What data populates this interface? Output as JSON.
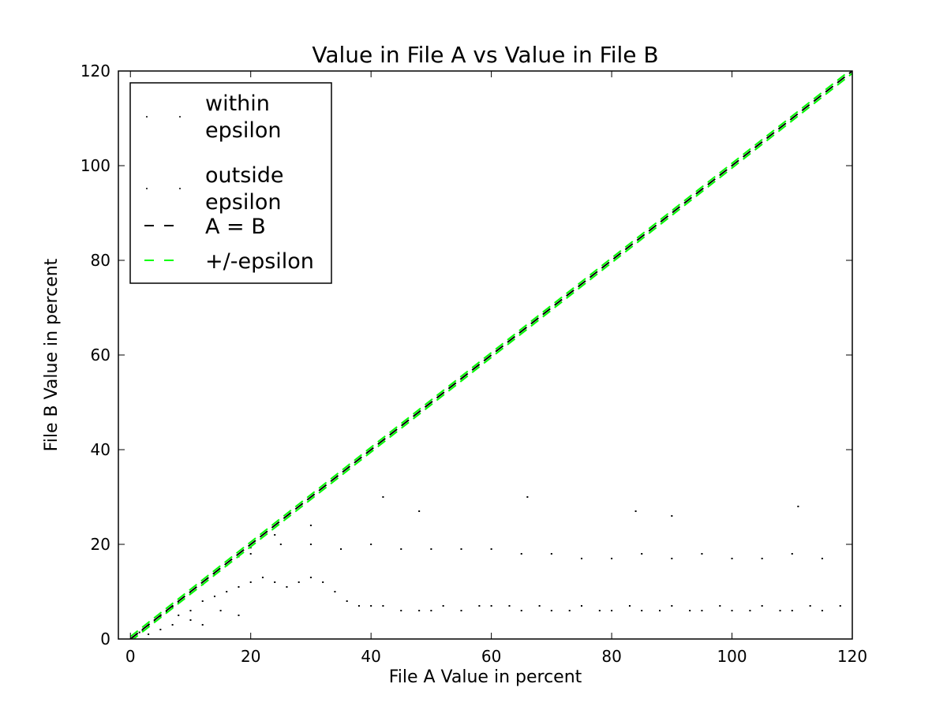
{
  "chart_data": {
    "type": "scatter",
    "title": "Value in File A vs Value in File B",
    "xlabel": "File A Value in percent",
    "ylabel": "File B Value in percent",
    "xlim": [
      -2,
      120
    ],
    "ylim": [
      0,
      120
    ],
    "xticks": [
      0,
      20,
      40,
      60,
      80,
      100,
      120
    ],
    "yticks": [
      0,
      20,
      40,
      60,
      80,
      100,
      120
    ],
    "tick_labels_x": [
      "0",
      "20",
      "40",
      "60",
      "80",
      "100",
      "120"
    ],
    "tick_labels_y": [
      "0",
      "20",
      "40",
      "60",
      "80",
      "100",
      "120"
    ],
    "grid": false,
    "legend": {
      "placement": "top-left",
      "entries": [
        {
          "label": "within epsilon",
          "lines": [
            "within",
            "epsilon"
          ],
          "marker": "point",
          "color": "#000000"
        },
        {
          "label": "outside epsilon",
          "lines": [
            "outside",
            "epsilon"
          ],
          "marker": "point",
          "color": "#000000"
        },
        {
          "label": "A = B",
          "lines": [
            "A = B"
          ],
          "marker": "dashed-line",
          "color": "#000000"
        },
        {
          "label": "+/-epsilon",
          "lines": [
            "+/-epsilon"
          ],
          "marker": "dashed-line",
          "color": "#00ff00"
        }
      ]
    },
    "series": [
      {
        "name": "within epsilon",
        "kind": "points",
        "color": "#000000",
        "x": [
          0.5,
          1,
          1.5,
          2,
          3,
          4,
          5,
          6,
          7,
          8,
          10,
          12,
          14,
          16,
          18,
          20
        ],
        "y": [
          0.5,
          1,
          1.4,
          1.9,
          2.9,
          3.9,
          4.8,
          5.8,
          6.8,
          7.7,
          9.6,
          11.5,
          13.6,
          15.5,
          17.4,
          19.3
        ]
      },
      {
        "name": "outside epsilon",
        "kind": "points",
        "color": "#000000",
        "x": [
          3,
          5,
          7,
          8,
          10,
          12,
          14,
          16,
          18,
          20,
          22,
          24,
          26,
          28,
          30,
          32,
          34,
          36,
          38,
          40,
          42,
          45,
          48,
          50,
          52,
          55,
          58,
          60,
          63,
          65,
          68,
          70,
          73,
          75,
          78,
          80,
          83,
          85,
          88,
          90,
          93,
          95,
          98,
          100,
          103,
          105,
          108,
          110,
          113,
          115,
          118,
          10,
          15,
          20,
          25,
          30,
          35,
          40,
          45,
          50,
          55,
          60,
          65,
          70,
          75,
          80,
          85,
          90,
          95,
          100,
          105,
          110,
          115,
          12,
          18,
          24,
          30,
          42,
          48,
          66,
          84,
          90,
          111
        ],
        "y": [
          1,
          2,
          3,
          5,
          6,
          8,
          9,
          10,
          11,
          12,
          13,
          12,
          11,
          12,
          13,
          12,
          10,
          8,
          7,
          7,
          7,
          6,
          6,
          6,
          7,
          6,
          7,
          7,
          7,
          6,
          7,
          6,
          6,
          7,
          6,
          6,
          7,
          6,
          6,
          7,
          6,
          6,
          7,
          6,
          6,
          7,
          6,
          6,
          7,
          6,
          7,
          4,
          6,
          18,
          20,
          20,
          19,
          20,
          19,
          19,
          19,
          19,
          18,
          18,
          17,
          17,
          18,
          17,
          18,
          17,
          17,
          18,
          17,
          3,
          5,
          22,
          24,
          30,
          27,
          30,
          27,
          26,
          28
        ]
      },
      {
        "name": "A = B",
        "kind": "dashed-line",
        "color": "#000000",
        "x": [
          0,
          120
        ],
        "y": [
          0,
          120
        ]
      },
      {
        "name": "+/-epsilon",
        "kind": "dashed-line",
        "color": "#00ff00",
        "x": [
          0,
          120
        ],
        "y": [
          -0.5,
          119.5
        ]
      },
      {
        "name": "+/-epsilon",
        "kind": "dashed-line",
        "color": "#00ff00",
        "x": [
          0,
          120
        ],
        "y": [
          0.5,
          120.5
        ]
      }
    ]
  }
}
